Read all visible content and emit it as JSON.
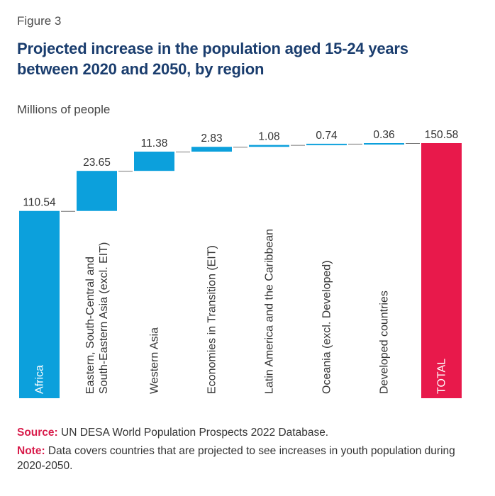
{
  "figure_label": "Figure 3",
  "title": "Projected increase in the population aged 15-24 years between 2020 and 2050, by region",
  "unit_label": "Millions of people",
  "colors": {
    "increase": "#0ca0dc",
    "total": "#e8194b",
    "connector": "#777777",
    "value_text": "#333333",
    "category_text": "#333333",
    "category_text_on_bar": "#ffffff"
  },
  "chart_data": {
    "type": "bar",
    "subtype": "waterfall",
    "categories": [
      "Africa",
      "Eastern, South-Central and South-Eastern Asia (excl. EIT)",
      "Western Asia",
      "Economies in Transition (EIT)",
      "Latin America and the Caribbean",
      "Oceania (excl. Developed)",
      "Developed countries",
      "TOTAL"
    ],
    "category_lines": [
      [
        "Africa"
      ],
      [
        "Eastern, South-Central and",
        "South-Eastern Asia (excl. EIT)"
      ],
      [
        "Western Asia"
      ],
      [
        "Economies in Transition (EIT)"
      ],
      [
        "Latin America and the Caribbean"
      ],
      [
        "Oceania (excl. Developed)"
      ],
      [
        "Developed countries"
      ],
      [
        "TOTAL"
      ]
    ],
    "values": [
      110.54,
      23.65,
      11.38,
      2.83,
      1.08,
      0.74,
      0.36,
      150.58
    ],
    "value_labels": [
      "110.54",
      "23.65",
      "11.38",
      "2.83",
      "1.08",
      "0.74",
      "0.36",
      "150.58"
    ],
    "is_total": [
      false,
      false,
      false,
      false,
      false,
      false,
      false,
      true
    ],
    "ylabel": "Millions of people",
    "ylim": [
      0,
      150.58
    ],
    "grid": false,
    "legend": "none"
  },
  "footer": {
    "source_label": "Source:",
    "source_text": "UN DESA World Population Prospects 2022 Database.",
    "note_label": "Note:",
    "note_text": "Data covers countries that are projected to see increases in youth population during 2020-2050."
  }
}
